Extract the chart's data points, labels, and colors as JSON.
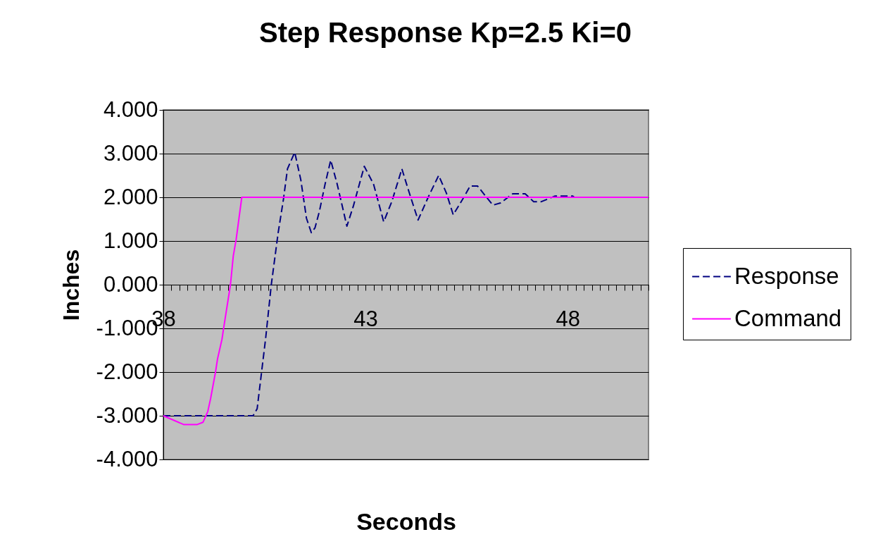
{
  "chart_data": {
    "type": "line",
    "title": "Step Response Kp=2.5 Ki=0",
    "xlabel": "Seconds",
    "ylabel": "Inches",
    "xlim": [
      38,
      50
    ],
    "ylim": [
      -4,
      4
    ],
    "xticks": [
      38,
      {
        "value": 38.2,
        "label": null
      },
      {
        "value": 38.4,
        "label": null
      },
      {
        "value": 38.6,
        "label": null
      },
      {
        "value": 38.8,
        "label": null
      },
      {
        "value": 39,
        "label": null
      },
      {
        "value": 39.2,
        "label": null
      },
      {
        "value": 39.4,
        "label": null
      },
      {
        "value": 39.6,
        "label": null
      },
      {
        "value": 39.8,
        "label": null
      },
      {
        "value": 40,
        "label": null
      },
      {
        "value": 40.2,
        "label": null
      },
      {
        "value": 40.4,
        "label": null
      },
      {
        "value": 40.6,
        "label": null
      },
      {
        "value": 40.8,
        "label": null
      },
      {
        "value": 41,
        "label": null
      },
      {
        "value": 41.2,
        "label": null
      },
      {
        "value": 41.4,
        "label": null
      },
      {
        "value": 41.6,
        "label": null
      },
      {
        "value": 41.8,
        "label": null
      },
      {
        "value": 42,
        "label": null
      },
      {
        "value": 42.2,
        "label": null
      },
      {
        "value": 42.4,
        "label": null
      },
      {
        "value": 42.6,
        "label": null
      },
      {
        "value": 42.8,
        "label": null
      },
      43,
      {
        "value": 43.2,
        "label": null
      },
      {
        "value": 43.4,
        "label": null
      },
      {
        "value": 43.6,
        "label": null
      },
      {
        "value": 43.8,
        "label": null
      },
      {
        "value": 44,
        "label": null
      },
      {
        "value": 44.2,
        "label": null
      },
      {
        "value": 44.4,
        "label": null
      },
      {
        "value": 44.6,
        "label": null
      },
      {
        "value": 44.8,
        "label": null
      },
      {
        "value": 45,
        "label": null
      },
      {
        "value": 45.2,
        "label": null
      },
      {
        "value": 45.4,
        "label": null
      },
      {
        "value": 45.6,
        "label": null
      },
      {
        "value": 45.8,
        "label": null
      },
      {
        "value": 46,
        "label": null
      },
      {
        "value": 46.2,
        "label": null
      },
      {
        "value": 46.4,
        "label": null
      },
      {
        "value": 46.6,
        "label": null
      },
      {
        "value": 46.8,
        "label": null
      },
      {
        "value": 47,
        "label": null
      },
      {
        "value": 47.2,
        "label": null
      },
      {
        "value": 47.4,
        "label": null
      },
      {
        "value": 47.6,
        "label": null
      },
      {
        "value": 47.8,
        "label": null
      },
      48,
      {
        "value": 48.2,
        "label": null
      },
      {
        "value": 48.4,
        "label": null
      },
      {
        "value": 48.6,
        "label": null
      },
      {
        "value": 48.8,
        "label": null
      },
      {
        "value": 49,
        "label": null
      },
      {
        "value": 49.2,
        "label": null
      },
      {
        "value": 49.4,
        "label": null
      },
      {
        "value": 49.6,
        "label": null
      },
      {
        "value": 49.8,
        "label": null
      },
      {
        "value": 50,
        "label": null
      }
    ],
    "yticks": [
      {
        "value": -4,
        "label": "-4.000"
      },
      {
        "value": -3,
        "label": "-3.000"
      },
      {
        "value": -2,
        "label": "-2.000"
      },
      {
        "value": -1,
        "label": "-1.000"
      },
      {
        "value": 0,
        "label": "0.000"
      },
      {
        "value": 1,
        "label": "1.000"
      },
      {
        "value": 2,
        "label": "2.000"
      },
      {
        "value": 3,
        "label": "3.000"
      },
      {
        "value": 4,
        "label": "4.000"
      }
    ],
    "grid": "y",
    "legend": "right",
    "marker": "none",
    "series": [
      {
        "name": "Response",
        "color": "#000080",
        "line_style": "dashed",
        "x": [
          38,
          40.22,
          40.32,
          40.53,
          40.67,
          40.84,
          40.97,
          41.07,
          41.25,
          41.4,
          41.54,
          41.66,
          41.75,
          41.86,
          42.0,
          42.14,
          42.3,
          42.54,
          42.7,
          42.97,
          43.2,
          43.45,
          43.65,
          43.9,
          44.05,
          44.3,
          44.55,
          44.81,
          45.0,
          45.17,
          45.4,
          45.59,
          45.77,
          46.15,
          46.34,
          46.64,
          46.95,
          47.16,
          47.35,
          47.69,
          48.12,
          48.17,
          50
        ],
        "values": [
          -3,
          -3,
          -2.84,
          -1.23,
          0,
          1.19,
          1.95,
          2.65,
          3.03,
          2.4,
          1.52,
          1.19,
          1.3,
          1.68,
          2.3,
          2.85,
          2.3,
          1.34,
          1.8,
          2.71,
          2.3,
          1.44,
          1.9,
          2.65,
          2.2,
          1.48,
          2.0,
          2.5,
          2.1,
          1.6,
          1.95,
          2.26,
          2.26,
          1.82,
          1.87,
          2.08,
          2.08,
          1.9,
          1.9,
          2.03,
          2.03,
          2.0,
          2.0
        ]
      },
      {
        "name": "Command",
        "color": "#ff00ff",
        "line_style": "solid",
        "x": [
          38,
          38.5,
          38.84,
          38.98,
          39.1,
          39.17,
          39.29,
          39.34,
          39.45,
          39.5,
          39.66,
          39.73,
          39.8,
          39.94,
          50
        ],
        "values": [
          -3,
          -3.2,
          -3.2,
          -3.15,
          -2.9,
          -2.6,
          -2.0,
          -1.7,
          -1.25,
          -0.94,
          0,
          0.66,
          1.03,
          2,
          2
        ]
      }
    ]
  }
}
